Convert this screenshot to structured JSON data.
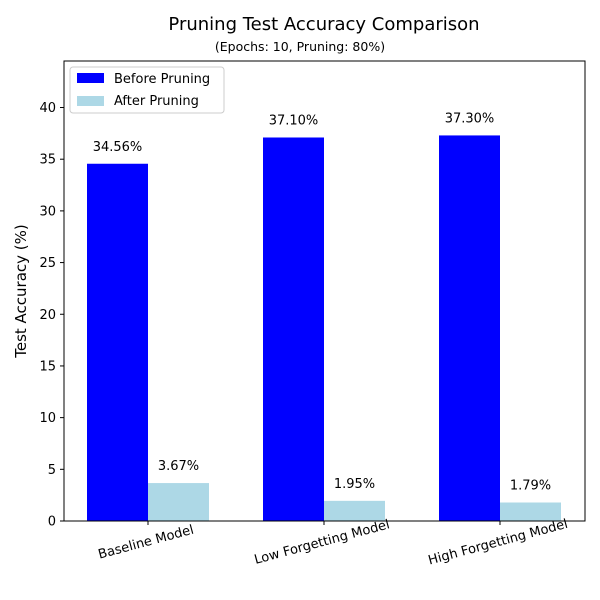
{
  "chart_data": {
    "type": "bar",
    "title": "Pruning Test Accuracy Comparison",
    "subtitle": "(Epochs: 10, Pruning: 80%)",
    "xlabel": "",
    "ylabel": "Test Accuracy (%)",
    "categories": [
      "Baseline Model",
      "Low Forgetting Model",
      "High Forgetting Model"
    ],
    "series": [
      {
        "name": "Before Pruning",
        "values": [
          34.56,
          37.1,
          37.3
        ],
        "labels": [
          "34.56%",
          "37.10%",
          "37.30%"
        ],
        "color": "#0000ff"
      },
      {
        "name": "After Pruning",
        "values": [
          3.67,
          1.95,
          1.79
        ],
        "labels": [
          "3.67%",
          "1.95%",
          "1.79%"
        ],
        "color": "#add8e6"
      }
    ],
    "ylim": [
      0,
      44.5
    ],
    "yticks": [
      0,
      5,
      10,
      15,
      20,
      25,
      30,
      35,
      40
    ],
    "ytick_labels": [
      "0",
      "5",
      "10",
      "15",
      "20",
      "25",
      "30",
      "35",
      "40"
    ],
    "grid": false,
    "legend_position": "top-left",
    "xtick_rotation_degrees": 15
  }
}
